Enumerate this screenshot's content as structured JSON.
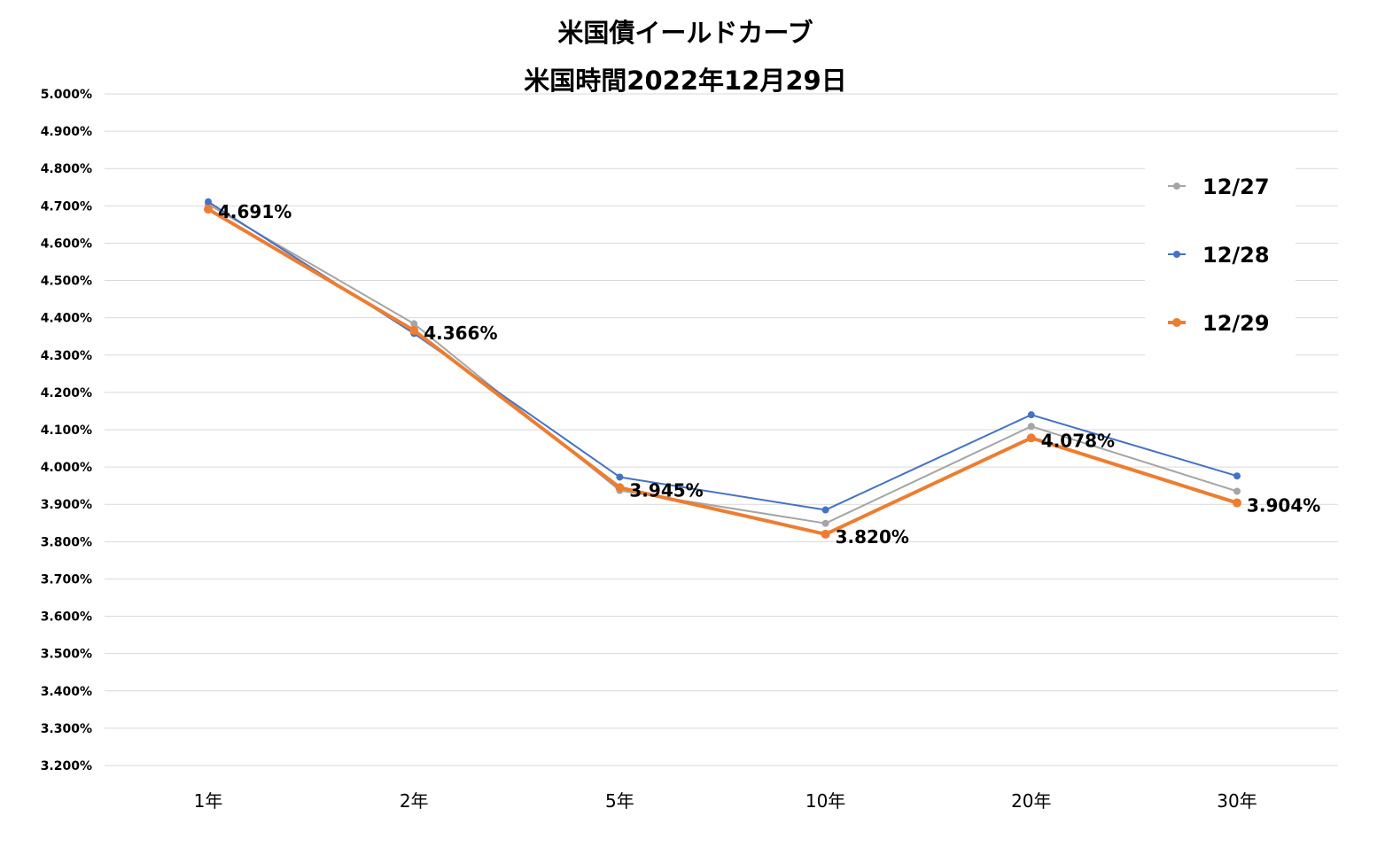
{
  "chart_data": {
    "type": "line",
    "title": "米国債イールドカーブ",
    "subtitle": "米国時間2022年12月29日",
    "categories": [
      "1年",
      "2年",
      "5年",
      "10年",
      "20年",
      "30年"
    ],
    "ylim": [
      3.2,
      5.0
    ],
    "ytick_step": 0.1,
    "ytick_labels": [
      "5.000%",
      "4.900%",
      "4.800%",
      "4.700%",
      "4.600%",
      "4.500%",
      "4.400%",
      "4.300%",
      "4.200%",
      "4.100%",
      "4.000%",
      "3.900%",
      "3.800%",
      "3.700%",
      "3.600%",
      "3.500%",
      "3.400%",
      "3.300%",
      "3.200%"
    ],
    "grid": true,
    "legend_position": "right",
    "series": [
      {
        "name": "12/27",
        "color": "#a5a5a5",
        "values": [
          4.704,
          4.384,
          3.937,
          3.849,
          4.109,
          3.935
        ]
      },
      {
        "name": "12/28",
        "color": "#4472c4",
        "values": [
          4.711,
          4.358,
          3.973,
          3.885,
          4.14,
          3.976
        ]
      },
      {
        "name": "12/29",
        "color": "#ed7d31",
        "values": [
          4.691,
          4.366,
          3.945,
          3.82,
          4.078,
          3.904
        ]
      }
    ],
    "data_labels": [
      "4.691%",
      "4.366%",
      "3.945%",
      "3.820%",
      "4.078%",
      "3.904%"
    ]
  }
}
